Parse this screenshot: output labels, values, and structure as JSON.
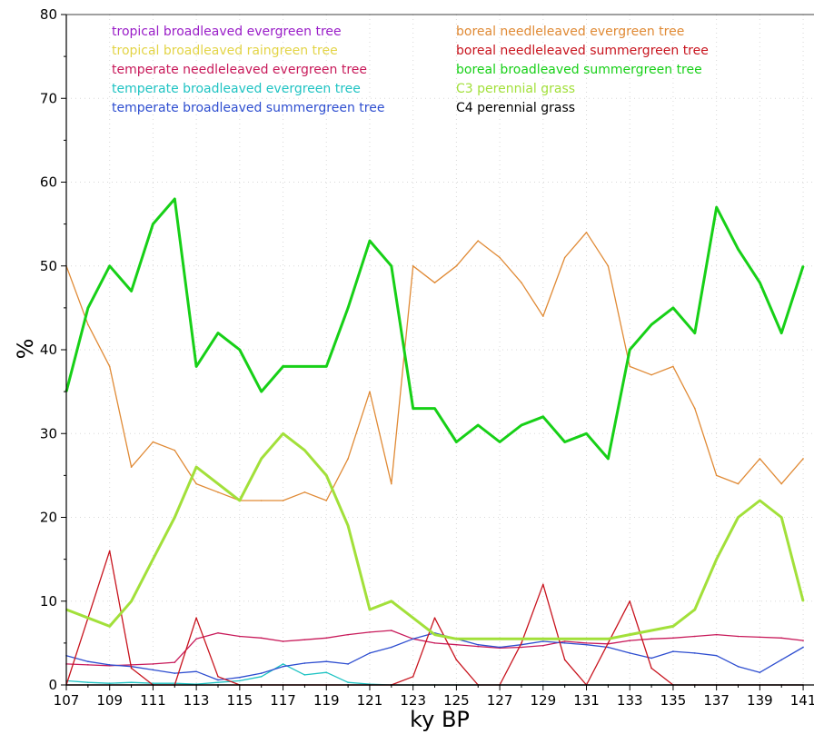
{
  "chart_data": {
    "type": "line",
    "title": "",
    "xlabel": "ky BP",
    "ylabel": "%",
    "xlim": [
      107,
      141.5
    ],
    "ylim": [
      0,
      80
    ],
    "x_ticks": [
      "107",
      "109",
      "111",
      "113",
      "115",
      "117",
      "119",
      "121",
      "123",
      "125",
      "127",
      "129",
      "131",
      "133",
      "135",
      "137",
      "139",
      "141"
    ],
    "y_ticks": [
      "0",
      "10",
      "20",
      "30",
      "40",
      "50",
      "60",
      "70",
      "80"
    ],
    "grid": true,
    "legend_position": "top",
    "x": [
      107,
      108,
      109,
      110,
      111,
      112,
      113,
      114,
      115,
      116,
      117,
      118,
      119,
      120,
      121,
      122,
      123,
      124,
      125,
      126,
      127,
      128,
      129,
      130,
      131,
      132,
      133,
      134,
      135,
      136,
      137,
      138,
      139,
      140,
      141
    ],
    "series": [
      {
        "name": "tropical broadleaved evergreen tree",
        "color": "#9a1ec8",
        "values": [
          0,
          0,
          0,
          0,
          0,
          0,
          0,
          0,
          0,
          0,
          0,
          0,
          0,
          0,
          0,
          0,
          0,
          0,
          0,
          0,
          0,
          0,
          0,
          0,
          0,
          0,
          0,
          0,
          0,
          0,
          0,
          0,
          0,
          0,
          0
        ]
      },
      {
        "name": "tropical broadleaved raingreen tree",
        "color": "#e3d447",
        "values": [
          0,
          0,
          0,
          0,
          0,
          0,
          0,
          0,
          0,
          0,
          0,
          0,
          0,
          0,
          0,
          0,
          0,
          0,
          0,
          0,
          0,
          0,
          0,
          0,
          0,
          0,
          0,
          0,
          0,
          0,
          0,
          0,
          0,
          0,
          0
        ]
      },
      {
        "name": "temperate needleleaved evergreen tree",
        "color": "#c81a5a",
        "values": [
          2.5,
          2.4,
          2.3,
          2.4,
          2.5,
          2.7,
          5.5,
          6.2,
          5.8,
          5.6,
          5.2,
          5.4,
          5.6,
          6.0,
          6.3,
          6.5,
          5.5,
          5.0,
          4.8,
          4.6,
          4.4,
          4.5,
          4.7,
          5.2,
          5.0,
          4.9,
          5.3,
          5.5,
          5.6,
          5.8,
          6.0,
          5.8,
          5.7,
          5.6,
          5.3
        ]
      },
      {
        "name": "temperate broadleaved evergreen tree",
        "color": "#1fc3c3",
        "values": [
          0.5,
          0.3,
          0.2,
          0.3,
          0.2,
          0.2,
          0.1,
          0.3,
          0.5,
          1.0,
          2.5,
          1.2,
          1.5,
          0.3,
          0.1,
          0,
          0,
          0,
          0,
          0,
          0,
          0,
          0,
          0,
          0,
          0,
          0,
          0,
          0,
          0,
          0,
          0,
          0,
          0,
          0
        ]
      },
      {
        "name": "temperate broadleaved summergreen tree",
        "color": "#2e4ed0",
        "values": [
          3.5,
          2.8,
          2.4,
          2.2,
          1.8,
          1.4,
          1.6,
          0.6,
          0.9,
          1.4,
          2.2,
          2.6,
          2.8,
          2.5,
          3.8,
          4.5,
          5.5,
          6.2,
          5.5,
          4.8,
          4.5,
          4.8,
          5.2,
          5.0,
          4.8,
          4.5,
          3.8,
          3.2,
          4.0,
          3.8,
          3.5,
          2.2,
          1.5,
          3.0,
          4.5
        ]
      },
      {
        "name": "boreal needleleaved evergreen tree",
        "color": "#e08a35",
        "values": [
          50,
          43,
          38,
          26,
          29,
          28,
          24,
          23,
          22,
          22,
          22,
          23,
          22,
          27,
          35,
          24,
          50,
          48,
          50,
          53,
          51,
          48,
          44,
          51,
          54,
          50,
          38,
          37,
          38,
          33,
          25,
          24,
          27,
          24,
          27
        ]
      },
      {
        "name": "boreal needleleaved summergreen tree",
        "color": "#c8141e",
        "values": [
          0,
          8,
          16,
          2,
          0,
          0,
          8,
          1,
          0,
          0,
          0,
          0,
          0,
          0,
          0,
          0,
          1,
          8,
          3,
          0,
          0,
          5,
          12,
          3,
          0,
          5,
          10,
          2,
          0,
          0,
          0,
          0,
          0,
          0,
          0
        ]
      },
      {
        "name": "boreal broadleaved summergreen tree",
        "color": "#17d017",
        "values": [
          35,
          45,
          50,
          47,
          55,
          58,
          38,
          42,
          40,
          35,
          38,
          38,
          38,
          45,
          53,
          50,
          33,
          33,
          29,
          31,
          29,
          31,
          32,
          29,
          30,
          27,
          40,
          43,
          45,
          42,
          57,
          52,
          48,
          42,
          50
        ]
      },
      {
        "name": "C3 perennial grass",
        "color": "#a2e03a",
        "values": [
          9,
          8,
          7,
          10,
          15,
          20,
          26,
          24,
          22,
          27,
          30,
          28,
          25,
          19,
          9,
          10,
          8,
          6,
          5.5,
          5.5,
          5.5,
          5.5,
          5.5,
          5.5,
          5.5,
          5.5,
          6,
          6.5,
          7,
          9,
          15,
          20,
          22,
          20,
          10
        ]
      },
      {
        "name": "C4 perennial grass",
        "color": "#000000",
        "values": [
          0,
          0,
          0,
          0,
          0,
          0,
          0,
          0,
          0,
          0,
          0,
          0,
          0,
          0,
          0,
          0,
          0,
          0,
          0,
          0,
          0,
          0,
          0,
          0,
          0,
          0,
          0,
          0,
          0,
          0,
          0,
          0,
          0,
          0,
          0
        ]
      }
    ]
  }
}
